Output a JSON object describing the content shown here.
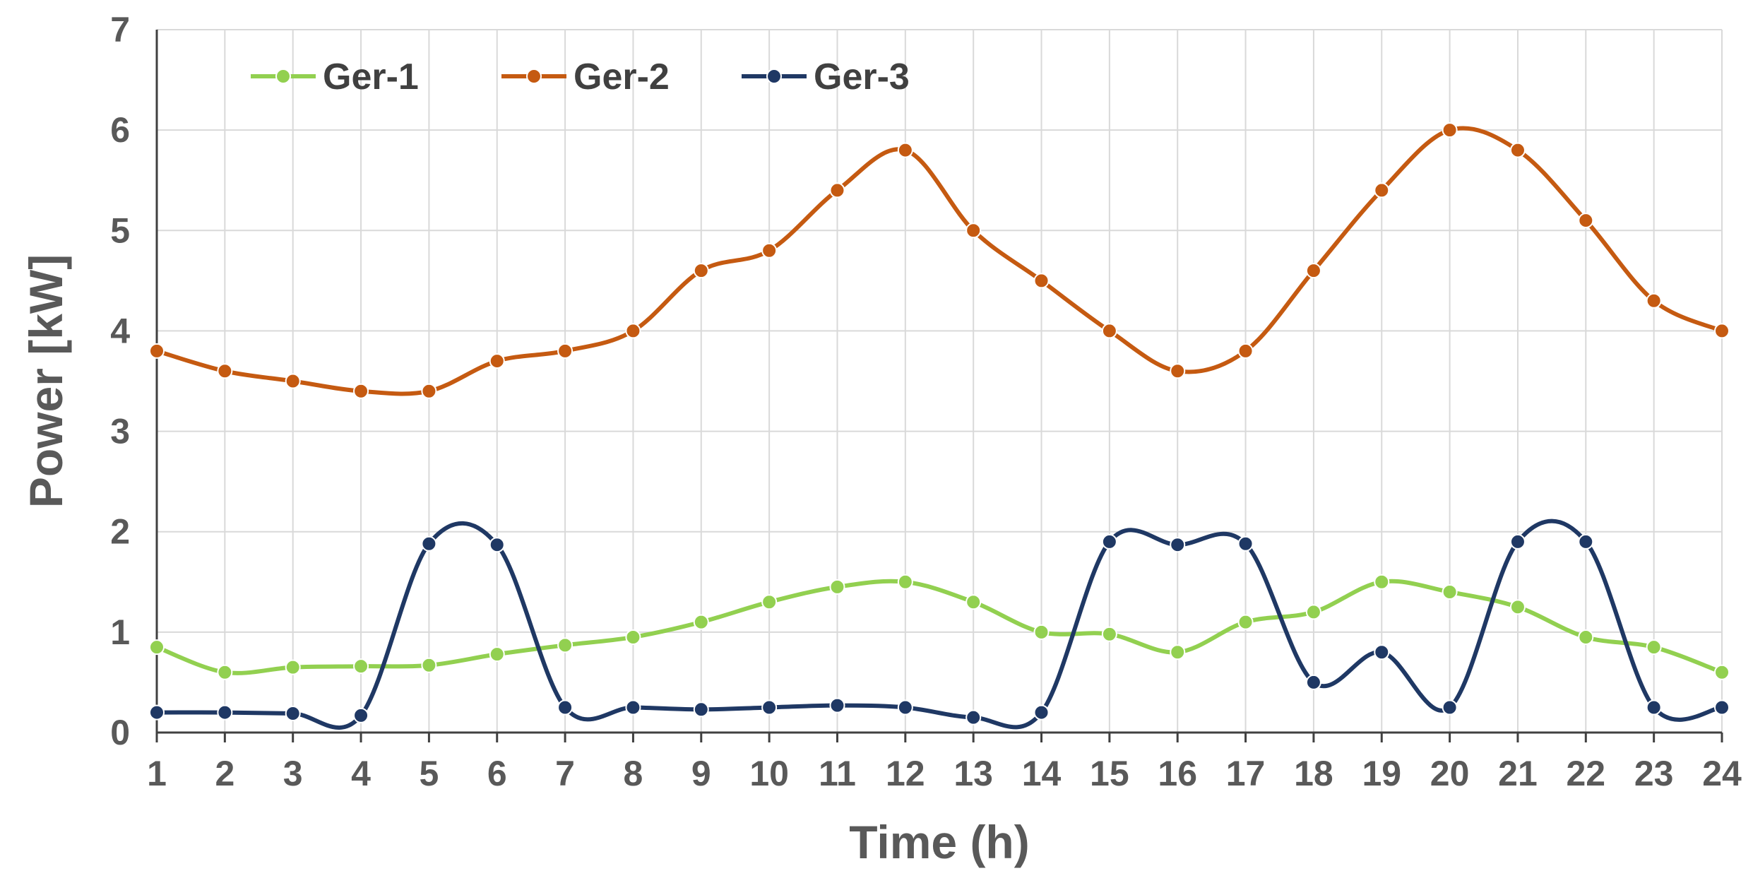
{
  "chart_data": {
    "type": "line",
    "xlabel": "Time (h)",
    "ylabel": "Power [kW]",
    "x": [
      1,
      2,
      3,
      4,
      5,
      6,
      7,
      8,
      9,
      10,
      11,
      12,
      13,
      14,
      15,
      16,
      17,
      18,
      19,
      20,
      21,
      22,
      23,
      24
    ],
    "xlim": [
      1,
      24
    ],
    "ylim": [
      0,
      7
    ],
    "yticks": [
      0,
      1,
      2,
      3,
      4,
      5,
      6,
      7
    ],
    "grid": true,
    "legend_position": "top-left",
    "smooth": true,
    "series": [
      {
        "name": "Ger-1",
        "color": "#92d050",
        "values": [
          0.85,
          0.6,
          0.65,
          0.66,
          0.67,
          0.78,
          0.87,
          0.95,
          1.1,
          1.3,
          1.45,
          1.5,
          1.3,
          1.0,
          0.98,
          0.8,
          1.1,
          1.2,
          1.5,
          1.4,
          1.25,
          0.95,
          0.85,
          0.6
        ]
      },
      {
        "name": "Ger-2",
        "color": "#c55a11",
        "values": [
          3.8,
          3.6,
          3.5,
          3.4,
          3.4,
          3.7,
          3.8,
          4.0,
          4.6,
          4.8,
          5.4,
          5.8,
          5.0,
          4.5,
          4.0,
          3.6,
          3.8,
          4.6,
          5.4,
          6.0,
          5.8,
          5.1,
          4.3,
          4.0
        ]
      },
      {
        "name": "Ger-3",
        "color": "#1f3864",
        "values": [
          0.2,
          0.2,
          0.19,
          0.17,
          1.88,
          1.87,
          0.25,
          0.25,
          0.23,
          0.25,
          0.27,
          0.25,
          0.15,
          0.2,
          1.9,
          1.87,
          1.88,
          0.5,
          0.8,
          0.25,
          1.9,
          1.9,
          0.25,
          0.25
        ]
      }
    ]
  }
}
